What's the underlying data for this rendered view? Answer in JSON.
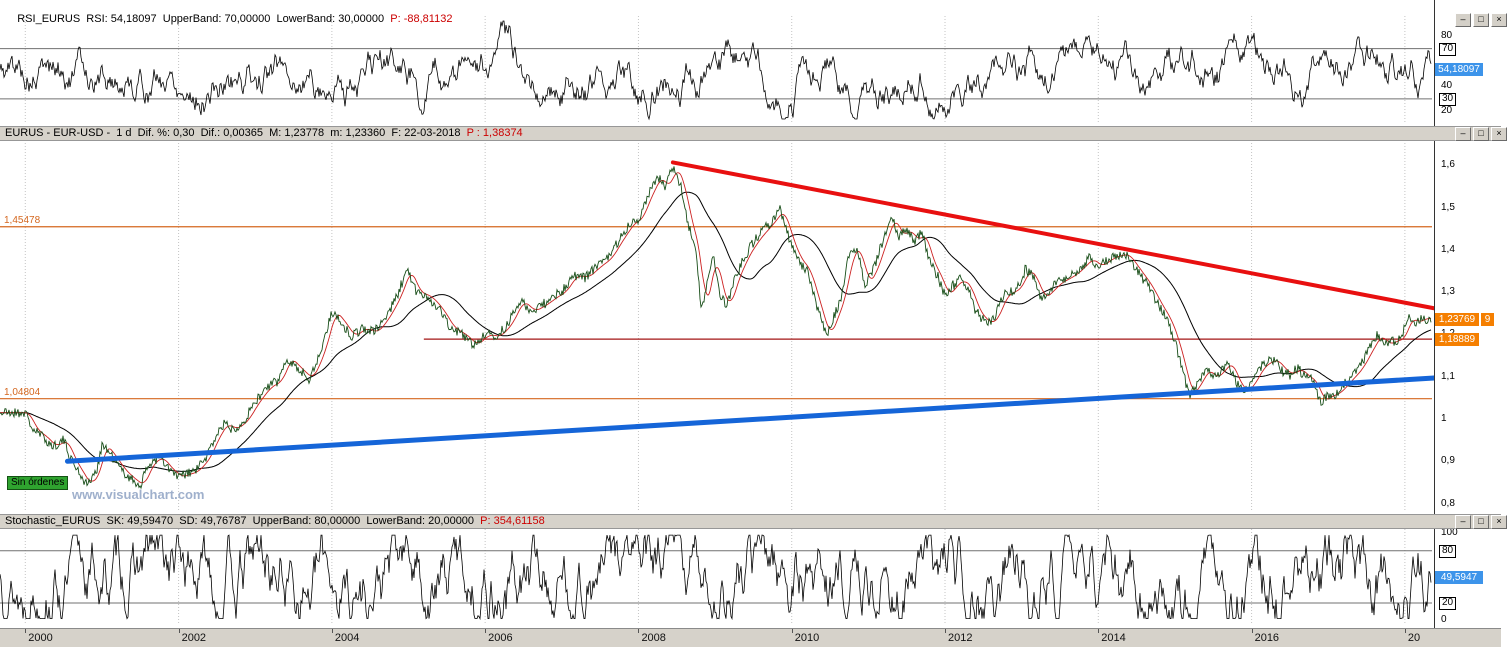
{
  "window": {
    "app": "VisualChart",
    "controls": {
      "minimize": "–",
      "maximize": "□",
      "close": "×"
    }
  },
  "panels": {
    "rsi": {
      "header_main": "RSI_EURUS  RSI: 54,18097  UpperBand: 70,00000  LowerBand: 30,00000  ",
      "header_p": "P: -88,81132"
    },
    "price": {
      "header_main": "EURUS - EUR-USD -  1 d  Dif. %: 0,30  Dif.: 0,00365  M: 1,23778  m: 1,23360  F: 22-03-2018  ",
      "header_p": "P : 1,38374",
      "no_orders_label": "Sin órdenes",
      "watermark": "www.visualchart.com"
    },
    "stoch": {
      "header_main": "Stochastic_EURUS  SK: 49,59470  SD: 49,76787  UpperBand: 80,00000  LowerBand: 20,00000  ",
      "header_p": "P: 354,61158"
    }
  },
  "chart_data": [
    {
      "id": "rsi",
      "type": "line",
      "title": "RSI_EURUS",
      "ylim": [
        10,
        96
      ],
      "bands": {
        "upper": 70,
        "lower": 30
      },
      "last_value": 54.18097,
      "ticks": [
        {
          "v": 80,
          "label": "80"
        },
        {
          "v": 70,
          "label": "70",
          "boxed": true
        },
        {
          "v": 40,
          "label": "40"
        },
        {
          "v": 30,
          "label": "30",
          "boxed": true
        },
        {
          "v": 20,
          "label": "20"
        }
      ],
      "badges": [
        {
          "v": 54.18097,
          "label": "54,18097",
          "color": "#3d94ea",
          "w": 48
        }
      ],
      "synth": {
        "seed": 5,
        "n": 1432,
        "start": 50,
        "vol": 18,
        "pull": 0.05,
        "min": 14,
        "max": 92
      }
    },
    {
      "id": "price",
      "type": "candlestick",
      "title": "EURUS - EUR-USD - 1 d",
      "ylim": [
        0.78,
        1.66
      ],
      "ticks": [
        {
          "v": 1.6,
          "label": "1,6"
        },
        {
          "v": 1.5,
          "label": "1,5"
        },
        {
          "v": 1.4,
          "label": "1,4"
        },
        {
          "v": 1.3,
          "label": "1,3"
        },
        {
          "v": 1.2,
          "label": "1,2"
        },
        {
          "v": 1.1,
          "label": "1,1"
        },
        {
          "v": 1.0,
          "label": "1"
        },
        {
          "v": 0.9,
          "label": "0,9"
        },
        {
          "v": 0.8,
          "label": "0,8"
        }
      ],
      "hlines": [
        {
          "v": 1.45478,
          "label": "1,45478",
          "color": "#d4671f"
        },
        {
          "v": 1.04804,
          "label": "1,04804",
          "color": "#d4671f"
        },
        {
          "v": 1.18889,
          "color": "#a31515",
          "from_year": 2005.2
        }
      ],
      "trendlines": [
        {
          "x1": 2008.45,
          "v1": 1.607,
          "x2": 2018.38,
          "v2": 1.262,
          "color": "#e81010",
          "w": 4
        },
        {
          "x1": 2000.55,
          "v1": 0.9,
          "x2": 2018.38,
          "v2": 1.097,
          "color": "#1565d8",
          "w": 5
        }
      ],
      "badges": [
        {
          "v": 1.2377,
          "label": "1,23769",
          "color": "#f57f00",
          "w": 44,
          "x": 0
        },
        {
          "v": 1.2377,
          "label": "9",
          "color": "#f57f00",
          "w": 13,
          "x": 46
        },
        {
          "v": 1.18889,
          "label": "1,18889",
          "color": "#f57f00",
          "w": 44,
          "x": 0
        }
      ],
      "anchors": [
        [
          2000.0,
          1.015
        ],
        [
          2000.1,
          0.975
        ],
        [
          2000.25,
          0.955
        ],
        [
          2000.35,
          0.935
        ],
        [
          2000.5,
          0.95
        ],
        [
          2000.6,
          0.905
        ],
        [
          2000.8,
          0.845
        ],
        [
          2000.92,
          0.87
        ],
        [
          2001.0,
          0.94
        ],
        [
          2001.1,
          0.92
        ],
        [
          2001.25,
          0.88
        ],
        [
          2001.4,
          0.855
        ],
        [
          2001.5,
          0.843
        ],
        [
          2001.62,
          0.895
        ],
        [
          2001.75,
          0.91
        ],
        [
          2001.85,
          0.885
        ],
        [
          2002.0,
          0.862
        ],
        [
          2002.1,
          0.87
        ],
        [
          2002.2,
          0.875
        ],
        [
          2002.35,
          0.905
        ],
        [
          2002.5,
          0.965
        ],
        [
          2002.6,
          0.99
        ],
        [
          2002.7,
          0.975
        ],
        [
          2002.85,
          0.995
        ],
        [
          2003.0,
          1.04
        ],
        [
          2003.15,
          1.075
        ],
        [
          2003.3,
          1.09
        ],
        [
          2003.42,
          1.145
        ],
        [
          2003.55,
          1.12
        ],
        [
          2003.7,
          1.095
        ],
        [
          2003.85,
          1.155
        ],
        [
          2004.0,
          1.255
        ],
        [
          2004.1,
          1.235
        ],
        [
          2004.25,
          1.195
        ],
        [
          2004.4,
          1.215
        ],
        [
          2004.55,
          1.205
        ],
        [
          2004.7,
          1.24
        ],
        [
          2004.85,
          1.29
        ],
        [
          2004.98,
          1.355
        ],
        [
          2005.1,
          1.3
        ],
        [
          2005.25,
          1.29
        ],
        [
          2005.4,
          1.26
        ],
        [
          2005.55,
          1.215
        ],
        [
          2005.7,
          1.2
        ],
        [
          2005.85,
          1.175
        ],
        [
          2006.0,
          1.2
        ],
        [
          2006.15,
          1.195
        ],
        [
          2006.3,
          1.225
        ],
        [
          2006.45,
          1.28
        ],
        [
          2006.6,
          1.255
        ],
        [
          2006.75,
          1.27
        ],
        [
          2006.9,
          1.29
        ],
        [
          2007.0,
          1.3
        ],
        [
          2007.15,
          1.34
        ],
        [
          2007.3,
          1.335
        ],
        [
          2007.45,
          1.36
        ],
        [
          2007.6,
          1.38
        ],
        [
          2007.75,
          1.425
        ],
        [
          2007.9,
          1.465
        ],
        [
          2008.0,
          1.472
        ],
        [
          2008.1,
          1.52
        ],
        [
          2008.25,
          1.575
        ],
        [
          2008.35,
          1.545
        ],
        [
          2008.45,
          1.598
        ],
        [
          2008.55,
          1.555
        ],
        [
          2008.65,
          1.46
        ],
        [
          2008.75,
          1.4
        ],
        [
          2008.82,
          1.255
        ],
        [
          2008.9,
          1.32
        ],
        [
          2008.97,
          1.395
        ],
        [
          2009.05,
          1.3
        ],
        [
          2009.15,
          1.265
        ],
        [
          2009.25,
          1.33
        ],
        [
          2009.4,
          1.39
        ],
        [
          2009.55,
          1.43
        ],
        [
          2009.7,
          1.46
        ],
        [
          2009.85,
          1.495
        ],
        [
          2009.95,
          1.435
        ],
        [
          2010.05,
          1.385
        ],
        [
          2010.2,
          1.35
        ],
        [
          2010.35,
          1.255
        ],
        [
          2010.45,
          1.195
        ],
        [
          2010.55,
          1.24
        ],
        [
          2010.65,
          1.29
        ],
        [
          2010.75,
          1.39
        ],
        [
          2010.85,
          1.405
        ],
        [
          2010.95,
          1.32
        ],
        [
          2011.05,
          1.345
        ],
        [
          2011.15,
          1.4
        ],
        [
          2011.3,
          1.48
        ],
        [
          2011.4,
          1.43
        ],
        [
          2011.5,
          1.45
        ],
        [
          2011.6,
          1.42
        ],
        [
          2011.7,
          1.44
        ],
        [
          2011.8,
          1.37
        ],
        [
          2011.9,
          1.34
        ],
        [
          2012.0,
          1.29
        ],
        [
          2012.1,
          1.315
        ],
        [
          2012.2,
          1.33
        ],
        [
          2012.3,
          1.31
        ],
        [
          2012.4,
          1.255
        ],
        [
          2012.55,
          1.225
        ],
        [
          2012.65,
          1.24
        ],
        [
          2012.75,
          1.29
        ],
        [
          2012.85,
          1.3
        ],
        [
          2012.95,
          1.31
        ],
        [
          2013.05,
          1.355
        ],
        [
          2013.15,
          1.335
        ],
        [
          2013.25,
          1.285
        ],
        [
          2013.35,
          1.3
        ],
        [
          2013.45,
          1.32
        ],
        [
          2013.55,
          1.33
        ],
        [
          2013.65,
          1.34
        ],
        [
          2013.75,
          1.355
        ],
        [
          2013.88,
          1.38
        ],
        [
          2014.0,
          1.36
        ],
        [
          2014.1,
          1.375
        ],
        [
          2014.2,
          1.385
        ],
        [
          2014.35,
          1.39
        ],
        [
          2014.45,
          1.365
        ],
        [
          2014.55,
          1.34
        ],
        [
          2014.65,
          1.315
        ],
        [
          2014.78,
          1.27
        ],
        [
          2014.9,
          1.235
        ],
        [
          2015.0,
          1.185
        ],
        [
          2015.08,
          1.13
        ],
        [
          2015.18,
          1.055
        ],
        [
          2015.3,
          1.085
        ],
        [
          2015.4,
          1.12
        ],
        [
          2015.5,
          1.095
        ],
        [
          2015.6,
          1.115
        ],
        [
          2015.7,
          1.135
        ],
        [
          2015.8,
          1.085
        ],
        [
          2015.9,
          1.065
        ],
        [
          2016.0,
          1.085
        ],
        [
          2016.1,
          1.12
        ],
        [
          2016.2,
          1.135
        ],
        [
          2016.3,
          1.14
        ],
        [
          2016.4,
          1.115
        ],
        [
          2016.5,
          1.105
        ],
        [
          2016.6,
          1.12
        ],
        [
          2016.7,
          1.1
        ],
        [
          2016.8,
          1.09
        ],
        [
          2016.9,
          1.04
        ],
        [
          2017.0,
          1.055
        ],
        [
          2017.1,
          1.06
        ],
        [
          2017.25,
          1.09
        ],
        [
          2017.4,
          1.12
        ],
        [
          2017.55,
          1.17
        ],
        [
          2017.65,
          1.2
        ],
        [
          2017.75,
          1.175
        ],
        [
          2017.85,
          1.185
        ],
        [
          2017.95,
          1.19
        ],
        [
          2018.05,
          1.245
        ],
        [
          2018.12,
          1.225
        ],
        [
          2018.18,
          1.235
        ],
        [
          2018.24,
          1.238
        ]
      ],
      "price_color": "#174d17",
      "ma_fast_color": "#cc2222",
      "ma_slow_color": "#000000"
    },
    {
      "id": "stoch",
      "type": "line",
      "title": "Stochastic_EURUS",
      "ylim": [
        -3,
        105
      ],
      "bands": {
        "upper": 80,
        "lower": 20
      },
      "last_values": {
        "sk": 49.5947,
        "sd": 49.76787
      },
      "ticks": [
        {
          "v": 100,
          "label": "100"
        },
        {
          "v": 80,
          "label": "80",
          "boxed": true
        },
        {
          "v": 20,
          "label": "20",
          "boxed": true
        },
        {
          "v": 0,
          "label": "0"
        }
      ],
      "badges": [
        {
          "v": 49.5947,
          "label": "49,5947",
          "color": "#3d94ea",
          "w": 48
        }
      ],
      "synth": {
        "seed": 13,
        "n": 1432,
        "start": 50,
        "vol": 48,
        "pull": 0.03,
        "min": 2,
        "max": 98
      }
    }
  ],
  "time_axis": {
    "labels": [
      {
        "year": 2000,
        "label": "2000"
      },
      {
        "year": 2002,
        "label": "2002"
      },
      {
        "year": 2004,
        "label": "2004"
      },
      {
        "year": 2006,
        "label": "2006"
      },
      {
        "year": 2008,
        "label": "2008"
      },
      {
        "year": 2010,
        "label": "2010"
      },
      {
        "year": 2012,
        "label": "2012"
      },
      {
        "year": 2014,
        "label": "2014"
      },
      {
        "year": 2016,
        "label": "2016"
      },
      {
        "year": 2018,
        "label": "20"
      }
    ]
  }
}
